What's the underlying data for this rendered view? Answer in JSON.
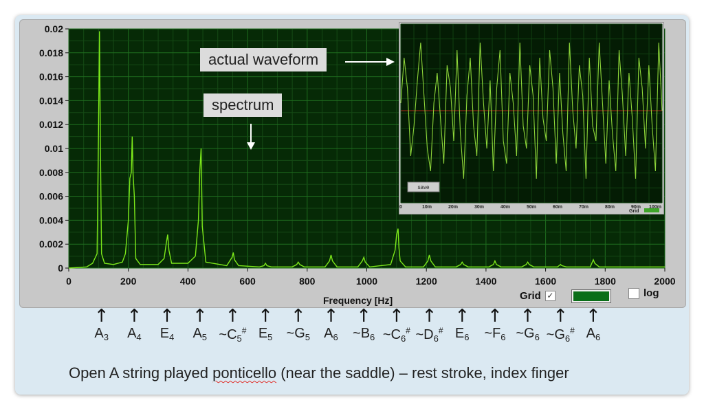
{
  "chart_data": [
    {
      "type": "line",
      "title": "",
      "xlabel": "Frequency [Hz]",
      "ylabel": "",
      "xlim": [
        0,
        2000
      ],
      "ylim": [
        0,
        0.02
      ],
      "grid": true,
      "x_ticks": [
        "0",
        "200",
        "400",
        "600",
        "800",
        "1000",
        "1200",
        "1400",
        "1600",
        "1800",
        "2000"
      ],
      "y_ticks": [
        "0",
        "0.002",
        "0.004",
        "0.006",
        "0.008",
        "0.01",
        "0.012",
        "0.014",
        "0.016",
        "0.018",
        "0.02"
      ],
      "series": [
        {
          "x": [
            0,
            60,
            80,
            95,
            100,
            103,
            106,
            110,
            120,
            150,
            180,
            190,
            200,
            205,
            210,
            213,
            216,
            220,
            225,
            240,
            300,
            320,
            328,
            332,
            336,
            345,
            400,
            425,
            435,
            440,
            444,
            448,
            460,
            530,
            548,
            552,
            556,
            570,
            640,
            655,
            660,
            665,
            680,
            750,
            765,
            770,
            775,
            790,
            860,
            875,
            880,
            885,
            900,
            970,
            985,
            990,
            995,
            1010,
            1080,
            1095,
            1100,
            1105,
            1108,
            1112,
            1130,
            1190,
            1205,
            1210,
            1215,
            1230,
            1300,
            1315,
            1320,
            1325,
            1340,
            1410,
            1425,
            1430,
            1435,
            1450,
            1520,
            1535,
            1540,
            1545,
            1560,
            1640,
            1645,
            1650,
            1655,
            1670,
            1750,
            1755,
            1760,
            1765,
            1780,
            1900,
            2000
          ],
          "y": [
            0,
            0.0001,
            0.0004,
            0.0012,
            0.0115,
            0.0198,
            0.0105,
            0.0012,
            0.0004,
            0.0003,
            0.0005,
            0.0012,
            0.004,
            0.0075,
            0.008,
            0.011,
            0.0078,
            0.006,
            0.0008,
            0.0003,
            0.0003,
            0.0008,
            0.0022,
            0.0028,
            0.0015,
            0.0004,
            0.0004,
            0.001,
            0.004,
            0.0082,
            0.01,
            0.0035,
            0.0005,
            0.0002,
            0.0009,
            0.0013,
            0.0007,
            0.0002,
            0.0001,
            0.0002,
            0.0004,
            0.0002,
            0.0001,
            0.0001,
            0.0003,
            0.0005,
            0.0003,
            0.0001,
            0.0001,
            0.0006,
            0.0011,
            0.0006,
            0.0001,
            0.0001,
            0.0006,
            0.0009,
            0.0005,
            0.0001,
            0.0003,
            0.0015,
            0.0028,
            0.0033,
            0.0017,
            0.0006,
            0.0001,
            0.0001,
            0.0006,
            0.0011,
            0.0006,
            0.0001,
            0.0001,
            0.0003,
            0.0005,
            0.0003,
            0.0001,
            0.0001,
            0.0003,
            0.0006,
            0.0003,
            0.0001,
            0.0001,
            0.0003,
            0.0005,
            0.0003,
            0.0001,
            0.0001,
            0.0002,
            0.0003,
            0.0002,
            0.0001,
            0.0001,
            0.0004,
            0.0007,
            0.0004,
            0.0001,
            0.0001,
            0.0001
          ],
          "color": "#7ce81a"
        }
      ]
    },
    {
      "type": "line",
      "title": "",
      "xlabel": "",
      "ylabel": "",
      "xlim": [
        0,
        100
      ],
      "grid": true,
      "x_ticks": [
        "0",
        "10m",
        "20m",
        "30m",
        "40m",
        "50m",
        "60m",
        "70m",
        "80m",
        "90m",
        "100m"
      ],
      "series": [
        {
          "y": [
            0.1,
            0.7,
            0.3,
            -0.6,
            -0.2,
            0.4,
            0.9,
            0.2,
            -0.5,
            -0.8,
            0.1,
            0.5,
            -0.1,
            -0.7,
            0.6,
            0.3,
            -0.4,
            0.8,
            -0.3,
            -0.9,
            0.2,
            0.7,
            -0.2,
            -0.6,
            0.9,
            0.1,
            -0.5,
            0.4,
            -0.8,
            0.3,
            0.8,
            -0.4,
            -0.7,
            0.5,
            0.1,
            -0.6,
            0.9,
            -0.2,
            -0.5,
            0.6,
            0.2,
            -0.9,
            0.7,
            -0.1,
            -0.4,
            0.8,
            0.3,
            -0.7,
            0.5,
            -0.3,
            -0.8,
            0.9,
            0.0,
            -0.5,
            0.6,
            0.2,
            -0.9,
            0.7,
            -0.2,
            -0.4,
            0.9,
            0.1,
            -0.7,
            0.4,
            -0.3,
            -0.8,
            0.8,
            0.2,
            -0.6,
            0.5,
            -0.1,
            -0.9,
            0.7,
            0.3,
            -0.5,
            0.6,
            -0.2,
            -0.8,
            0.9,
            0.0
          ],
          "color": "#8ed63a"
        }
      ]
    }
  ],
  "callouts": {
    "waveform": "actual waveform",
    "spectrum": "spectrum"
  },
  "inset_controls": {
    "save": "save",
    "grid": "Grid"
  },
  "controls": {
    "frequency_label": "Frequency [Hz]",
    "grid_label": "Grid",
    "grid_checked": "✓",
    "grid_color": "#0a6e18",
    "log_label": "log"
  },
  "notes": [
    {
      "freq": 110,
      "name": "A",
      "sub": "3",
      "sup": ""
    },
    {
      "freq": 220,
      "name": "A",
      "sub": "4",
      "sup": ""
    },
    {
      "freq": 330,
      "name": "E",
      "sub": "4",
      "sup": ""
    },
    {
      "freq": 440,
      "name": "A",
      "sub": "5",
      "sup": ""
    },
    {
      "freq": 550,
      "name": "~C",
      "sub": "5",
      "sup": "#"
    },
    {
      "freq": 660,
      "name": "E",
      "sub": "5",
      "sup": ""
    },
    {
      "freq": 770,
      "name": "~G",
      "sub": "5",
      "sup": ""
    },
    {
      "freq": 880,
      "name": "A",
      "sub": "6",
      "sup": ""
    },
    {
      "freq": 990,
      "name": "~B",
      "sub": "6",
      "sup": ""
    },
    {
      "freq": 1100,
      "name": "~C",
      "sub": "6",
      "sup": "#"
    },
    {
      "freq": 1210,
      "name": "~D",
      "sub": "6",
      "sup": "#"
    },
    {
      "freq": 1320,
      "name": "E",
      "sub": "6",
      "sup": ""
    },
    {
      "freq": 1430,
      "name": "~F",
      "sub": "6",
      "sup": ""
    },
    {
      "freq": 1540,
      "name": "~G",
      "sub": "6",
      "sup": ""
    },
    {
      "freq": 1650,
      "name": "~G",
      "sub": "6",
      "sup": "#"
    },
    {
      "freq": 1760,
      "name": "A",
      "sub": "6",
      "sup": ""
    }
  ],
  "caption": {
    "before": "Open A string played ",
    "misspelled": "ponticello",
    "after": " (near the saddle) – rest stroke, index finger"
  }
}
